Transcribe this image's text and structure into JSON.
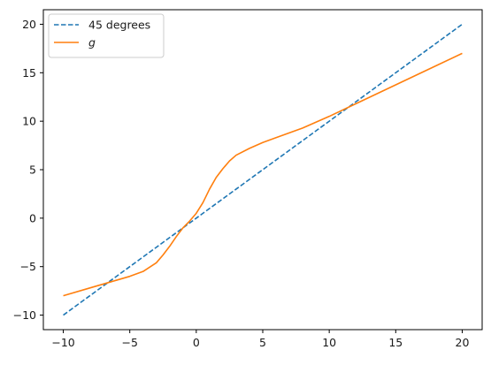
{
  "chart_data": {
    "type": "line",
    "title": "",
    "xlabel": "",
    "ylabel": "",
    "xlim": [
      -11.5,
      21.5
    ],
    "ylim": [
      -11.5,
      21.5
    ],
    "x_ticks": [
      -10,
      -5,
      0,
      5,
      10,
      15,
      20
    ],
    "y_ticks": [
      -10,
      -5,
      0,
      5,
      10,
      15,
      20
    ],
    "x_tick_labels": [
      "−10",
      "−5",
      "0",
      "5",
      "10",
      "15",
      "20"
    ],
    "y_tick_labels": [
      "−10",
      "−5",
      "0",
      "5",
      "10",
      "15",
      "20"
    ],
    "grid": false,
    "legend": {
      "position": "top-left"
    },
    "series": [
      {
        "name": "45 degrees",
        "style": "dashed",
        "color": "#1f77b4",
        "x": [
          -10,
          20
        ],
        "y": [
          -10,
          20
        ]
      },
      {
        "name": "g",
        "style": "solid",
        "color": "#ff7f0e",
        "x": [
          -10,
          -8,
          -6,
          -5,
          -4,
          -3,
          -2.5,
          -2,
          -1.5,
          -1,
          -0.5,
          0,
          0.5,
          1,
          1.5,
          2,
          2.5,
          3,
          4,
          5,
          6,
          8,
          10,
          12,
          14,
          16,
          18,
          20
        ],
        "y": [
          -8.0,
          -7.2,
          -6.4,
          -6.0,
          -5.5,
          -4.6,
          -3.8,
          -2.9,
          -1.9,
          -1.0,
          -0.3,
          0.5,
          1.6,
          3.0,
          4.2,
          5.1,
          5.9,
          6.5,
          7.2,
          7.8,
          8.3,
          9.3,
          10.5,
          11.8,
          13.1,
          14.4,
          15.7,
          17.0
        ]
      }
    ]
  }
}
